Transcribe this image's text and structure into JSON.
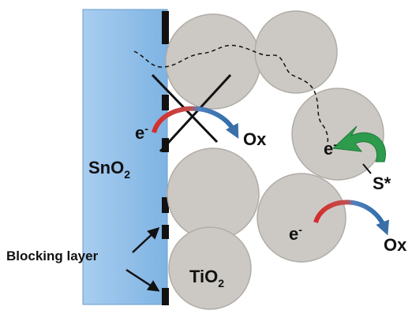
{
  "labels": {
    "e_top": {
      "main": "e",
      "sup": "-"
    },
    "ox_top": "Ox",
    "sno2": {
      "main": "SnO",
      "sub": "2"
    },
    "e_right": {
      "main": "e",
      "sup": "-"
    },
    "s_star": "S*",
    "e_bottom": {
      "main": "e",
      "sup": "-"
    },
    "ox_bottom": "Ox",
    "blocking_layer": "Blocking layer",
    "tio2": {
      "main": "TiO",
      "sub": "2"
    }
  }
}
